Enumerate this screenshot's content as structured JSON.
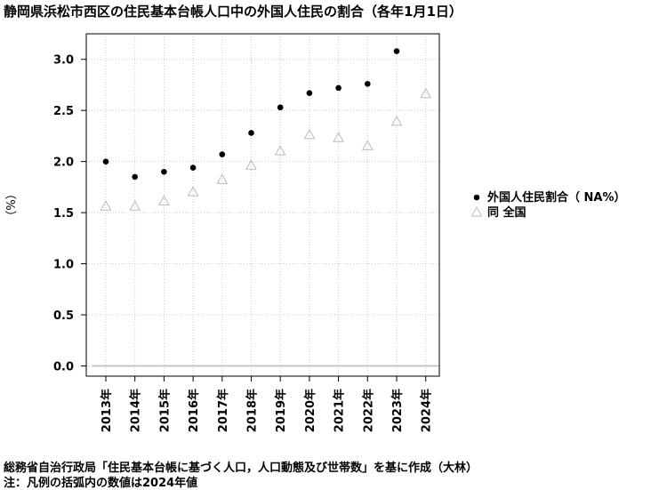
{
  "chart_data": {
    "type": "scatter",
    "title": "静岡県浜松市西区の住民基本台帳人口中の外国人住民の割合（各年1月1日）",
    "ylabel": "（%）",
    "categories": [
      "2013年",
      "2014年",
      "2015年",
      "2016年",
      "2017年",
      "2018年",
      "2019年",
      "2020年",
      "2021年",
      "2022年",
      "2023年",
      "2024年"
    ],
    "ylim": [
      -0.1,
      3.25
    ],
    "yticks": [
      0.0,
      0.5,
      1.0,
      1.5,
      2.0,
      2.5,
      3.0
    ],
    "ytick_labels": [
      "0.0",
      "0.5",
      "1.0",
      "1.5",
      "2.0",
      "2.5",
      "3.0"
    ],
    "grid": true,
    "legend_position": "right",
    "series": [
      {
        "name": "外国人住民割合（ NA%）",
        "marker": "filled-circle",
        "color": "#000000",
        "values": [
          2.0,
          1.85,
          1.9,
          1.94,
          2.07,
          2.28,
          2.53,
          2.67,
          2.72,
          2.76,
          3.08,
          null
        ]
      },
      {
        "name": "同 全国",
        "marker": "open-triangle",
        "color": "#bbbbbb",
        "values": [
          1.56,
          1.56,
          1.61,
          1.7,
          1.82,
          1.96,
          2.1,
          2.26,
          2.23,
          2.15,
          2.39,
          2.66
        ]
      }
    ],
    "reference_line": 0.0,
    "reference_line_color": "#bbbbbb"
  },
  "source": "総務省自治行政局「住民基本台帳に基づく人口，人口動態及び世帯数」を基に作成（大林）",
  "note": "注：凡例の括弧内の数値は2024年値"
}
